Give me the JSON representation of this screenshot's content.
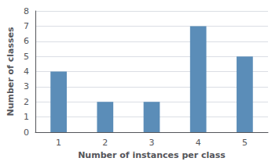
{
  "chart_data": {
    "type": "bar",
    "categories": [
      "1",
      "2",
      "3",
      "4",
      "5"
    ],
    "values": [
      4,
      2,
      2,
      7,
      5
    ],
    "color": "#5b8db8",
    "xlabel": "Number of instances per class",
    "ylabel": "Number of classes",
    "ylim": [
      0,
      8
    ],
    "yticks": [
      0,
      1,
      2,
      3,
      4,
      5,
      6,
      7,
      8
    ],
    "grid": true
  }
}
